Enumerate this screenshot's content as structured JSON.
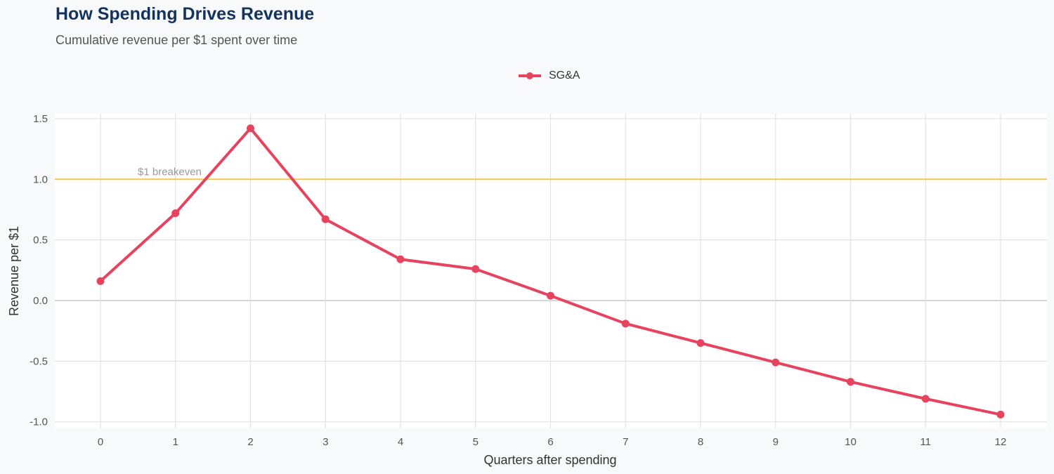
{
  "chart_data": {
    "type": "line",
    "title": "How Spending Drives Revenue",
    "subtitle": "Cumulative revenue per $1 spent over time",
    "xlabel": "Quarters after spending",
    "ylabel": "Revenue per $1",
    "x": [
      0,
      1,
      2,
      3,
      4,
      5,
      6,
      7,
      8,
      9,
      10,
      11,
      12
    ],
    "series": [
      {
        "name": "SG&A",
        "color": "#e8435e",
        "values": [
          0.16,
          0.72,
          1.42,
          0.67,
          0.34,
          0.26,
          0.04,
          -0.19,
          -0.35,
          -0.51,
          -0.67,
          -0.81,
          -0.94
        ]
      }
    ],
    "xlim": [
      -0.6,
      12.6
    ],
    "ylim": [
      -1.05,
      1.55
    ],
    "yticks": [
      -1.0,
      -0.5,
      0.0,
      0.5,
      1.0,
      1.5
    ],
    "ytick_labels": [
      "-1.0",
      "-0.5",
      "0.0",
      "0.5",
      "1.0",
      "1.5"
    ],
    "xticks": [
      0,
      1,
      2,
      3,
      4,
      5,
      6,
      7,
      8,
      9,
      10,
      11,
      12
    ],
    "xtick_labels": [
      "0",
      "1",
      "2",
      "3",
      "4",
      "5",
      "6",
      "7",
      "8",
      "9",
      "10",
      "11",
      "12"
    ],
    "reference_line": {
      "y": 1.0,
      "label": "$1 breakeven",
      "color": "#f5c842"
    },
    "grid": true,
    "legend": "top-center"
  }
}
